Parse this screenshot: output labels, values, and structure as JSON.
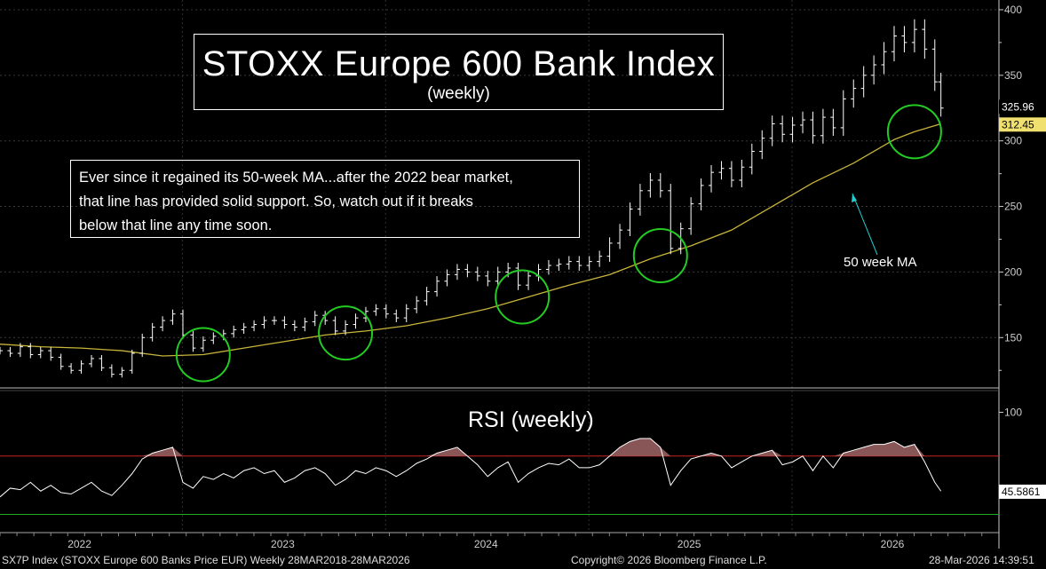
{
  "title": "STOXX Europe 600 Bank Index",
  "subtitle": "(weekly)",
  "annotation": {
    "lines": [
      "Ever since it regained its 50-week MA...after the 2022 bear market,",
      "that line has provided solid support.  So, watch out if it breaks",
      "below that line any time soon."
    ]
  },
  "ma_label": "50 week MA",
  "rsi_title": "RSI (weekly)",
  "footer": {
    "left": "SX7P Index (STOXX Europe 600 Banks Price EUR) Weekly 28MAR2018-28MAR2026",
    "center": "Copyright© 2026 Bloomberg Finance L.P.",
    "right": "28-Mar-2026 14:39:51"
  },
  "colors": {
    "price": "#ffffff",
    "ma": "#c8b43a",
    "circle": "#22cc22",
    "rsi_fill": "#a06565",
    "overbought": "#cc2222",
    "oversold": "#22aa22",
    "axis": "#cccccc",
    "ma_arrow": "#22cccc"
  },
  "chart_data": [
    {
      "type": "line",
      "title": "STOXX Europe 600 Bank Index (weekly)",
      "xlabel": "",
      "ylabel": "",
      "ylim": [
        115,
        402
      ],
      "xlim": [
        2021.6,
        2026.45
      ],
      "grid": true,
      "yticks": [
        150,
        200,
        250,
        300,
        350,
        400
      ],
      "xtick_labels": [
        {
          "label": "2022",
          "x": 2022.0
        },
        {
          "label": "2023",
          "x": 2023.0
        },
        {
          "label": "2024",
          "x": 2024.0
        },
        {
          "label": "2025",
          "x": 2025.0
        },
        {
          "label": "2026",
          "x": 2026.0
        }
      ],
      "last_price": 312.45,
      "last_price_label": "312.45",
      "other_level": 325.96,
      "other_level_label": "325.96",
      "series": [
        {
          "name": "SX7P weekly price",
          "x": [
            2021.6,
            2021.65,
            2021.7,
            2021.75,
            2021.8,
            2021.85,
            2021.9,
            2021.95,
            2022.0,
            2022.05,
            2022.1,
            2022.15,
            2022.2,
            2022.25,
            2022.3,
            2022.35,
            2022.4,
            2022.45,
            2022.5,
            2022.55,
            2022.6,
            2022.65,
            2022.7,
            2022.75,
            2022.8,
            2022.85,
            2022.9,
            2022.95,
            2023.0,
            2023.05,
            2023.1,
            2023.15,
            2023.2,
            2023.25,
            2023.3,
            2023.35,
            2023.4,
            2023.45,
            2023.5,
            2023.55,
            2023.6,
            2023.65,
            2023.7,
            2023.75,
            2023.8,
            2023.85,
            2023.9,
            2023.95,
            2024.0,
            2024.05,
            2024.1,
            2024.15,
            2024.2,
            2024.25,
            2024.3,
            2024.35,
            2024.4,
            2024.45,
            2024.5,
            2024.55,
            2024.6,
            2024.65,
            2024.7,
            2024.75,
            2024.8,
            2024.85,
            2024.9,
            2024.95,
            2025.0,
            2025.05,
            2025.1,
            2025.15,
            2025.2,
            2025.25,
            2025.3,
            2025.35,
            2025.4,
            2025.45,
            2025.5,
            2025.55,
            2025.6,
            2025.65,
            2025.7,
            2025.75,
            2025.8,
            2025.85,
            2025.9,
            2025.95,
            2026.0,
            2026.05,
            2026.1,
            2026.15,
            2026.2,
            2026.23
          ],
          "values": [
            140,
            138,
            143,
            137,
            140,
            135,
            128,
            125,
            130,
            134,
            127,
            122,
            125,
            138,
            150,
            158,
            163,
            168,
            152,
            142,
            148,
            151,
            153,
            156,
            158,
            160,
            163,
            163,
            160,
            158,
            162,
            167,
            163,
            155,
            160,
            165,
            170,
            172,
            168,
            165,
            172,
            178,
            185,
            193,
            198,
            202,
            200,
            197,
            193,
            200,
            203,
            190,
            197,
            202,
            205,
            206,
            208,
            205,
            208,
            212,
            222,
            232,
            248,
            262,
            270,
            262,
            218,
            233,
            252,
            266,
            276,
            279,
            270,
            280,
            292,
            302,
            313,
            305,
            312,
            316,
            304,
            318,
            310,
            332,
            340,
            350,
            358,
            368,
            380,
            375,
            385,
            370,
            345,
            325
          ]
        },
        {
          "name": "50 week MA",
          "x": [
            2021.6,
            2021.8,
            2022.0,
            2022.2,
            2022.4,
            2022.6,
            2022.8,
            2023.0,
            2023.2,
            2023.4,
            2023.6,
            2023.8,
            2024.0,
            2024.2,
            2024.4,
            2024.6,
            2024.8,
            2025.0,
            2025.2,
            2025.4,
            2025.6,
            2025.8,
            2026.0,
            2026.1,
            2026.23
          ],
          "values": [
            145,
            143,
            142,
            140,
            136,
            137,
            142,
            147,
            152,
            155,
            159,
            165,
            172,
            181,
            190,
            198,
            210,
            220,
            232,
            250,
            268,
            283,
            301,
            307,
            313
          ]
        }
      ],
      "support_circles_x": [
        2022.6,
        2023.3,
        2024.17,
        2024.85,
        2026.1
      ]
    },
    {
      "type": "line",
      "title": "RSI (weekly)",
      "ylim": [
        20,
        110
      ],
      "yticks": [
        100
      ],
      "overbought_level": 70,
      "oversold_level": 30,
      "last_value": 45.5861,
      "last_value_label": "45.5861",
      "series": [
        {
          "name": "RSI",
          "x": [
            2021.6,
            2021.65,
            2021.7,
            2021.75,
            2021.8,
            2021.85,
            2021.9,
            2021.95,
            2022.0,
            2022.05,
            2022.1,
            2022.15,
            2022.2,
            2022.25,
            2022.3,
            2022.35,
            2022.4,
            2022.45,
            2022.5,
            2022.55,
            2022.6,
            2022.65,
            2022.7,
            2022.75,
            2022.8,
            2022.85,
            2022.9,
            2022.95,
            2023.0,
            2023.05,
            2023.1,
            2023.15,
            2023.2,
            2023.25,
            2023.3,
            2023.35,
            2023.4,
            2023.45,
            2023.5,
            2023.55,
            2023.6,
            2023.65,
            2023.7,
            2023.75,
            2023.8,
            2023.85,
            2023.9,
            2023.95,
            2024.0,
            2024.05,
            2024.1,
            2024.15,
            2024.2,
            2024.25,
            2024.3,
            2024.35,
            2024.4,
            2024.45,
            2024.5,
            2024.55,
            2024.6,
            2024.65,
            2024.7,
            2024.75,
            2024.8,
            2024.85,
            2024.9,
            2024.95,
            2025.0,
            2025.05,
            2025.1,
            2025.15,
            2025.2,
            2025.25,
            2025.3,
            2025.35,
            2025.4,
            2025.45,
            2025.5,
            2025.55,
            2025.6,
            2025.65,
            2025.7,
            2025.75,
            2025.8,
            2025.85,
            2025.9,
            2025.95,
            2026.0,
            2026.05,
            2026.1,
            2026.15,
            2026.2,
            2026.23
          ],
          "values": [
            42,
            48,
            47,
            52,
            46,
            50,
            45,
            44,
            48,
            52,
            46,
            43,
            50,
            58,
            68,
            72,
            74,
            76,
            52,
            48,
            56,
            54,
            58,
            55,
            60,
            62,
            58,
            60,
            52,
            55,
            60,
            62,
            58,
            50,
            54,
            60,
            58,
            62,
            60,
            56,
            60,
            65,
            68,
            72,
            74,
            76,
            70,
            64,
            56,
            62,
            66,
            52,
            58,
            62,
            65,
            64,
            68,
            62,
            62,
            64,
            70,
            76,
            80,
            82,
            82,
            76,
            50,
            60,
            68,
            70,
            72,
            70,
            62,
            66,
            70,
            72,
            74,
            64,
            66,
            70,
            60,
            70,
            62,
            72,
            74,
            76,
            78,
            78,
            80,
            76,
            78,
            66,
            52,
            46
          ]
        }
      ]
    }
  ]
}
